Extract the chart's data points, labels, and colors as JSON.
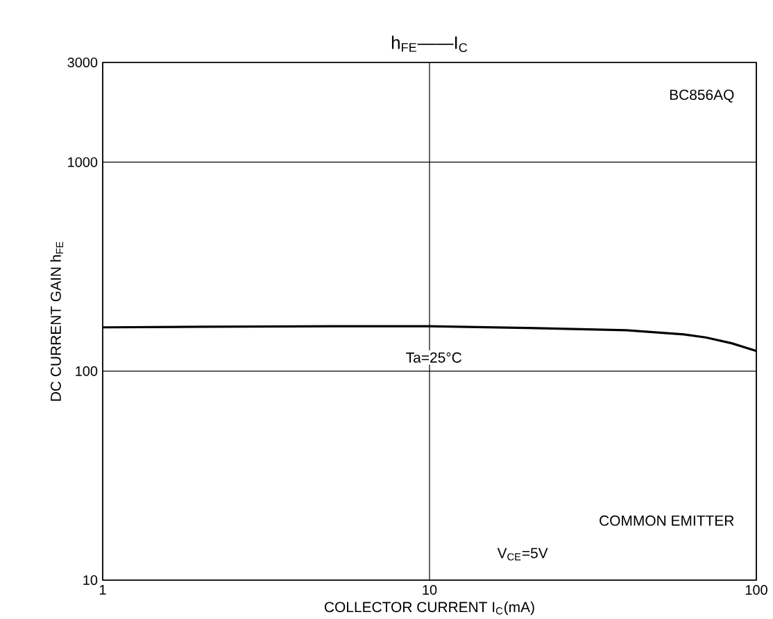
{
  "chart_data": {
    "type": "line",
    "title": "h$_{FE}$——I$_{C}$",
    "xlabel": "COLLECTOR CURRENT I$_{C}$(mA)",
    "ylabel": "DC CURRENT GAIN  h$_{FE}$",
    "log": "xy",
    "grid": true,
    "xlim": [
      1,
      100
    ],
    "ylim": [
      10,
      3000
    ],
    "xticks": [
      1,
      10,
      100
    ],
    "yticks": [
      10,
      100,
      1000,
      3000
    ],
    "x": [
      1,
      2,
      5,
      10,
      20,
      40,
      60,
      70,
      84,
      100
    ],
    "series": [
      {
        "color": "#000000",
        "values": [
          162,
          163,
          164,
          164,
          161,
          157,
          150,
          145,
          136,
          125
        ]
      }
    ],
    "annotations": [
      "BC856AQ",
      "Ta=25°C",
      "COMMON EMITTER",
      "V$_{CE}$=5V"
    ]
  }
}
